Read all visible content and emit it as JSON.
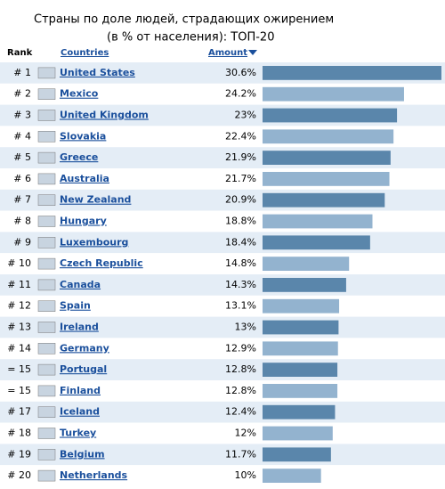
{
  "chart_data": {
    "type": "bar",
    "orientation": "horizontal",
    "title": [
      "Страны по доле людей, страдающих ожирением",
      "(в % от населения): ТОП-20"
    ],
    "columns": [
      "Rank",
      "Countries",
      "Amount"
    ],
    "ranks": [
      "# 1",
      "# 2",
      "# 3",
      "# 4",
      "# 5",
      "# 6",
      "# 7",
      "# 8",
      "# 9",
      "# 10",
      "# 11",
      "# 12",
      "# 13",
      "# 14",
      "= 15",
      "= 15",
      "# 17",
      "# 18",
      "# 19",
      "# 20"
    ],
    "categories": [
      "United States",
      "Mexico",
      "United Kingdom",
      "Slovakia",
      "Greece",
      "Australia",
      "New Zealand",
      "Hungary",
      "Luxembourg",
      "Czech Republic",
      "Canada",
      "Spain",
      "Ireland",
      "Germany",
      "Portugal",
      "Finland",
      "Iceland",
      "Turkey",
      "Belgium",
      "Netherlands"
    ],
    "values": [
      30.6,
      24.2,
      23,
      22.4,
      21.9,
      21.7,
      20.9,
      18.8,
      18.4,
      14.8,
      14.3,
      13.1,
      13,
      12.9,
      12.8,
      12.8,
      12.4,
      12,
      11.7,
      10
    ],
    "value_labels": [
      "30.6%",
      "24.2%",
      "23%",
      "22.4%",
      "21.9%",
      "21.7%",
      "20.9%",
      "18.8%",
      "18.4%",
      "14.8%",
      "14.3%",
      "13.1%",
      "13%",
      "12.9%",
      "12.8%",
      "12.8%",
      "12.4%",
      "12%",
      "11.7%",
      "10%"
    ],
    "colors": [
      "#5a86ab",
      "#93b3cf"
    ],
    "row_colors": [
      "#e4edf6",
      "#ffffff"
    ]
  }
}
